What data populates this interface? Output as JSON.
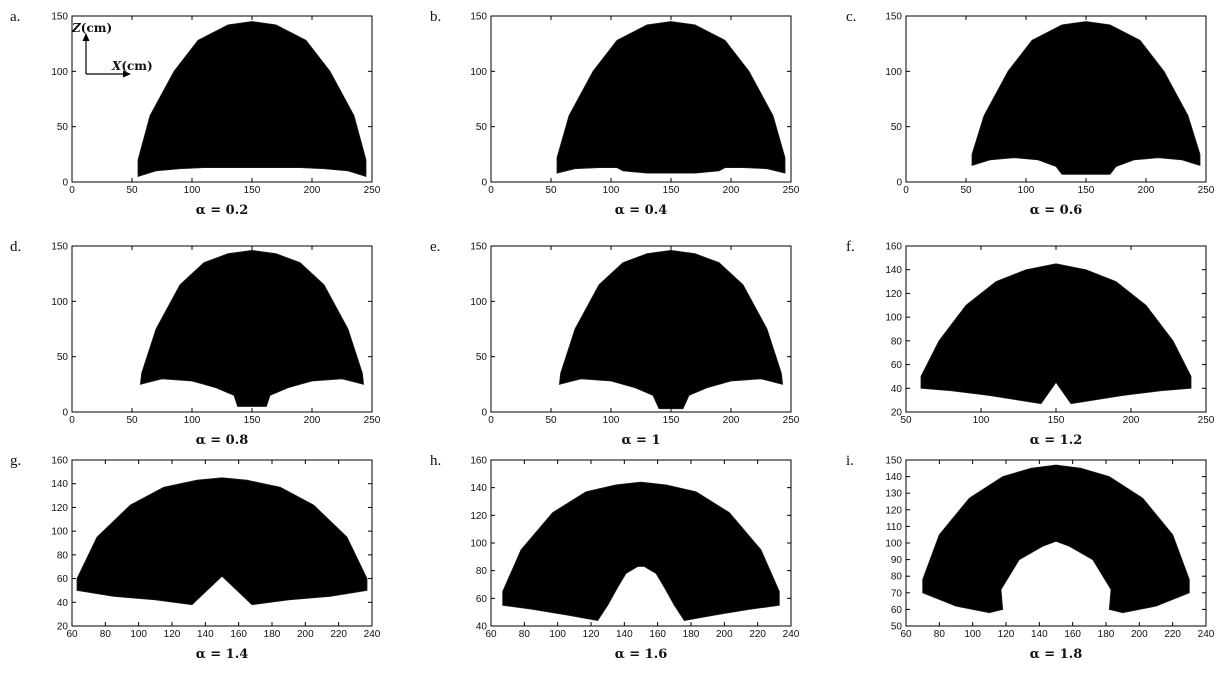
{
  "figure": {
    "axis_labels": {
      "z_letter": "Z",
      "z_unit": "(cm)",
      "x_letter": "X",
      "x_unit": "(cm)"
    }
  },
  "chart_data": [
    {
      "type": "area",
      "panel_letter": "a.",
      "caption": "α = 0.2",
      "alpha": 0.2,
      "xlim": [
        0,
        250
      ],
      "ylim": [
        0,
        150
      ],
      "xticks": [
        0,
        50,
        100,
        150,
        200,
        250
      ],
      "yticks": [
        0,
        50,
        100,
        150
      ],
      "fill_color": "#000000",
      "outline": [
        [
          55,
          5
        ],
        [
          55,
          20
        ],
        [
          65,
          60
        ],
        [
          85,
          100
        ],
        [
          105,
          128
        ],
        [
          130,
          142
        ],
        [
          150,
          145
        ],
        [
          170,
          142
        ],
        [
          195,
          128
        ],
        [
          215,
          100
        ],
        [
          235,
          60
        ],
        [
          245,
          20
        ],
        [
          245,
          5
        ],
        [
          230,
          10
        ],
        [
          210,
          12
        ],
        [
          190,
          13
        ],
        [
          170,
          13
        ],
        [
          150,
          13
        ],
        [
          130,
          13
        ],
        [
          110,
          13
        ],
        [
          90,
          12
        ],
        [
          70,
          10
        ]
      ]
    },
    {
      "type": "area",
      "panel_letter": "b.",
      "caption": "α = 0.4",
      "alpha": 0.4,
      "xlim": [
        0,
        250
      ],
      "ylim": [
        0,
        150
      ],
      "xticks": [
        0,
        50,
        100,
        150,
        200,
        250
      ],
      "yticks": [
        0,
        50,
        100,
        150
      ],
      "fill_color": "#000000",
      "outline": [
        [
          55,
          8
        ],
        [
          55,
          22
        ],
        [
          65,
          60
        ],
        [
          85,
          100
        ],
        [
          105,
          128
        ],
        [
          130,
          142
        ],
        [
          150,
          145
        ],
        [
          170,
          142
        ],
        [
          195,
          128
        ],
        [
          215,
          100
        ],
        [
          235,
          60
        ],
        [
          245,
          22
        ],
        [
          245,
          8
        ],
        [
          230,
          12
        ],
        [
          210,
          13
        ],
        [
          195,
          13
        ],
        [
          190,
          10
        ],
        [
          170,
          8
        ],
        [
          150,
          8
        ],
        [
          130,
          8
        ],
        [
          110,
          10
        ],
        [
          105,
          13
        ],
        [
          90,
          13
        ],
        [
          70,
          12
        ]
      ]
    },
    {
      "type": "area",
      "panel_letter": "c.",
      "caption": "α = 0.6",
      "alpha": 0.6,
      "xlim": [
        0,
        250
      ],
      "ylim": [
        0,
        150
      ],
      "xticks": [
        0,
        50,
        100,
        150,
        200,
        250
      ],
      "yticks": [
        0,
        50,
        100,
        150
      ],
      "fill_color": "#000000",
      "outline": [
        [
          55,
          15
        ],
        [
          55,
          25
        ],
        [
          65,
          60
        ],
        [
          85,
          100
        ],
        [
          105,
          128
        ],
        [
          130,
          142
        ],
        [
          150,
          145
        ],
        [
          170,
          142
        ],
        [
          195,
          128
        ],
        [
          215,
          100
        ],
        [
          235,
          60
        ],
        [
          245,
          25
        ],
        [
          245,
          15
        ],
        [
          230,
          20
        ],
        [
          210,
          22
        ],
        [
          190,
          20
        ],
        [
          175,
          14
        ],
        [
          170,
          7
        ],
        [
          130,
          7
        ],
        [
          125,
          14
        ],
        [
          110,
          20
        ],
        [
          90,
          22
        ],
        [
          70,
          20
        ]
      ]
    },
    {
      "type": "area",
      "panel_letter": "d.",
      "caption": "α = 0.8",
      "alpha": 0.8,
      "xlim": [
        0,
        250
      ],
      "ylim": [
        0,
        150
      ],
      "xticks": [
        0,
        50,
        100,
        150,
        200,
        250
      ],
      "yticks": [
        0,
        50,
        100,
        150
      ],
      "fill_color": "#000000",
      "outline": [
        [
          57,
          25
        ],
        [
          58,
          35
        ],
        [
          70,
          75
        ],
        [
          90,
          115
        ],
        [
          110,
          135
        ],
        [
          130,
          143
        ],
        [
          150,
          146
        ],
        [
          170,
          143
        ],
        [
          190,
          135
        ],
        [
          210,
          115
        ],
        [
          230,
          75
        ],
        [
          242,
          35
        ],
        [
          243,
          25
        ],
        [
          225,
          30
        ],
        [
          200,
          28
        ],
        [
          180,
          22
        ],
        [
          165,
          15
        ],
        [
          162,
          5
        ],
        [
          138,
          5
        ],
        [
          135,
          15
        ],
        [
          120,
          22
        ],
        [
          100,
          28
        ],
        [
          75,
          30
        ]
      ]
    },
    {
      "type": "area",
      "panel_letter": "e.",
      "caption": "α = 1",
      "alpha": 1,
      "xlim": [
        0,
        250
      ],
      "ylim": [
        0,
        150
      ],
      "xticks": [
        0,
        50,
        100,
        150,
        200,
        250
      ],
      "yticks": [
        0,
        50,
        100,
        150
      ],
      "fill_color": "#000000",
      "outline": [
        [
          57,
          25
        ],
        [
          58,
          35
        ],
        [
          70,
          75
        ],
        [
          90,
          115
        ],
        [
          110,
          135
        ],
        [
          130,
          143
        ],
        [
          150,
          146
        ],
        [
          170,
          143
        ],
        [
          190,
          135
        ],
        [
          210,
          115
        ],
        [
          230,
          75
        ],
        [
          242,
          35
        ],
        [
          243,
          25
        ],
        [
          225,
          30
        ],
        [
          200,
          28
        ],
        [
          180,
          22
        ],
        [
          165,
          15
        ],
        [
          160,
          3
        ],
        [
          140,
          3
        ],
        [
          135,
          15
        ],
        [
          120,
          22
        ],
        [
          100,
          28
        ],
        [
          75,
          30
        ]
      ]
    },
    {
      "type": "area",
      "panel_letter": "f.",
      "caption": "α = 1.2",
      "alpha": 1.2,
      "xlim": [
        50,
        250
      ],
      "ylim": [
        20,
        160
      ],
      "xticks": [
        50,
        100,
        150,
        200,
        250
      ],
      "yticks": [
        20,
        40,
        60,
        80,
        100,
        120,
        140,
        160
      ],
      "fill_color": "#000000",
      "outline": [
        [
          60,
          40
        ],
        [
          60,
          50
        ],
        [
          72,
          80
        ],
        [
          90,
          110
        ],
        [
          110,
          130
        ],
        [
          130,
          140
        ],
        [
          150,
          145
        ],
        [
          170,
          140
        ],
        [
          190,
          130
        ],
        [
          210,
          110
        ],
        [
          228,
          80
        ],
        [
          240,
          50
        ],
        [
          240,
          40
        ],
        [
          220,
          38
        ],
        [
          195,
          34
        ],
        [
          175,
          30
        ],
        [
          160,
          27
        ],
        [
          150,
          45
        ],
        [
          140,
          27
        ],
        [
          125,
          30
        ],
        [
          105,
          34
        ],
        [
          80,
          38
        ]
      ]
    },
    {
      "type": "area",
      "panel_letter": "g.",
      "caption": "α = 1.4",
      "alpha": 1.4,
      "xlim": [
        60,
        240
      ],
      "ylim": [
        20,
        160
      ],
      "xticks": [
        60,
        80,
        100,
        120,
        140,
        160,
        180,
        200,
        220,
        240
      ],
      "yticks": [
        20,
        40,
        60,
        80,
        100,
        120,
        140,
        160
      ],
      "fill_color": "#000000",
      "outline": [
        [
          63,
          50
        ],
        [
          63,
          60
        ],
        [
          75,
          95
        ],
        [
          95,
          122
        ],
        [
          115,
          137
        ],
        [
          135,
          143
        ],
        [
          150,
          145
        ],
        [
          165,
          143
        ],
        [
          185,
          137
        ],
        [
          205,
          122
        ],
        [
          225,
          95
        ],
        [
          237,
          60
        ],
        [
          237,
          50
        ],
        [
          215,
          45
        ],
        [
          190,
          42
        ],
        [
          168,
          38
        ],
        [
          150,
          62
        ],
        [
          132,
          38
        ],
        [
          110,
          42
        ],
        [
          85,
          45
        ]
      ]
    },
    {
      "type": "area",
      "panel_letter": "h.",
      "caption": "α = 1.6",
      "alpha": 1.6,
      "xlim": [
        60,
        240
      ],
      "ylim": [
        40,
        160
      ],
      "xticks": [
        60,
        80,
        100,
        120,
        140,
        160,
        180,
        200,
        220,
        240
      ],
      "yticks": [
        40,
        60,
        80,
        100,
        120,
        140,
        160
      ],
      "fill_color": "#000000",
      "outline": [
        [
          67,
          55
        ],
        [
          67,
          65
        ],
        [
          78,
          95
        ],
        [
          97,
          122
        ],
        [
          117,
          137
        ],
        [
          135,
          142
        ],
        [
          150,
          144
        ],
        [
          165,
          142
        ],
        [
          183,
          137
        ],
        [
          203,
          122
        ],
        [
          222,
          95
        ],
        [
          233,
          65
        ],
        [
          233,
          55
        ],
        [
          215,
          52
        ],
        [
          195,
          48
        ],
        [
          176,
          44
        ],
        [
          170,
          55
        ],
        [
          164,
          68
        ],
        [
          159,
          78
        ],
        [
          152,
          83
        ],
        [
          148,
          83
        ],
        [
          141,
          78
        ],
        [
          136,
          68
        ],
        [
          130,
          55
        ],
        [
          124,
          44
        ],
        [
          105,
          48
        ],
        [
          85,
          52
        ]
      ]
    },
    {
      "type": "area",
      "panel_letter": "i.",
      "caption": "α = 1.8",
      "alpha": 1.8,
      "xlim": [
        60,
        240
      ],
      "ylim": [
        50,
        150
      ],
      "xticks": [
        60,
        80,
        100,
        120,
        140,
        160,
        180,
        200,
        220,
        240
      ],
      "yticks": [
        50,
        60,
        70,
        80,
        90,
        100,
        110,
        120,
        130,
        140,
        150
      ],
      "fill_color": "#000000",
      "outline": [
        [
          70,
          70
        ],
        [
          70,
          78
        ],
        [
          80,
          105
        ],
        [
          98,
          127
        ],
        [
          118,
          140
        ],
        [
          135,
          145
        ],
        [
          150,
          147
        ],
        [
          165,
          145
        ],
        [
          182,
          140
        ],
        [
          202,
          127
        ],
        [
          220,
          105
        ],
        [
          230,
          78
        ],
        [
          230,
          70
        ],
        [
          210,
          62
        ],
        [
          190,
          58
        ],
        [
          182,
          60
        ],
        [
          183,
          72
        ],
        [
          172,
          90
        ],
        [
          158,
          98
        ],
        [
          150,
          101
        ],
        [
          142,
          98
        ],
        [
          128,
          90
        ],
        [
          117,
          72
        ],
        [
          118,
          60
        ],
        [
          110,
          58
        ],
        [
          90,
          62
        ]
      ]
    }
  ]
}
